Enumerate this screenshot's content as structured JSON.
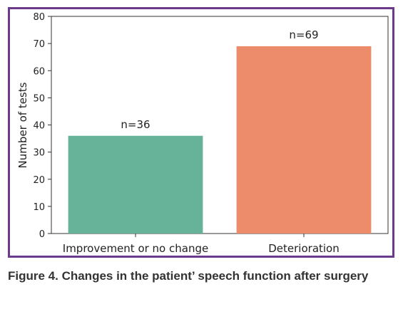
{
  "caption": "Figure 4. Changes in the patient’ speech function after surgery",
  "chart_data": {
    "type": "bar",
    "categories": [
      "Improvement or no change",
      "Deterioration"
    ],
    "values": [
      36,
      69
    ],
    "data_labels": [
      "n=36",
      "n=69"
    ],
    "ylabel": "Number of tests",
    "xlabel": "",
    "ylim": [
      0,
      80
    ],
    "yticks": [
      0,
      10,
      20,
      30,
      40,
      50,
      60,
      70,
      80
    ],
    "colors": [
      "#66b39a",
      "#ec8c6a"
    ],
    "grid": false,
    "frame_color": "#6b3a8c"
  }
}
